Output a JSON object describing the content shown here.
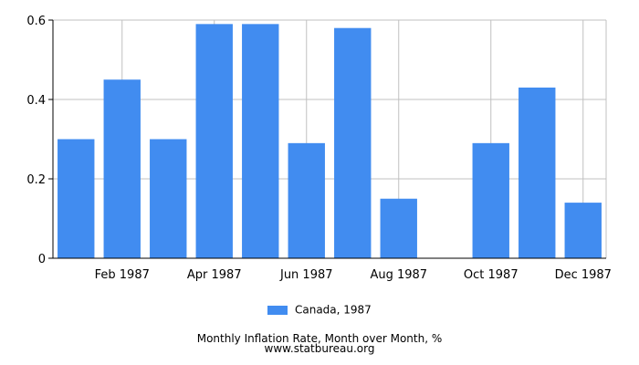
{
  "chart_data": {
    "type": "bar",
    "x": [
      "Jan 1987",
      "Feb 1987",
      "Mar 1987",
      "Apr 1987",
      "May 1987",
      "Jun 1987",
      "Jul 1987",
      "Aug 1987",
      "Sep 1987",
      "Oct 1987",
      "Nov 1987",
      "Dec 1987"
    ],
    "x_tick_labels": [
      "",
      "Feb 1987",
      "",
      "Apr 1987",
      "",
      "Jun 1987",
      "",
      "Aug 1987",
      "",
      "Oct 1987",
      "",
      "Dec 1987"
    ],
    "series": [
      {
        "name": "Canada, 1987",
        "values": [
          0.3,
          0.45,
          0.3,
          0.59,
          0.59,
          0.29,
          0.58,
          0.15,
          0.0,
          0.29,
          0.43,
          0.14
        ]
      }
    ],
    "y_ticks": [
      0,
      0.2,
      0.4,
      0.6
    ],
    "y_tick_labels": [
      "0",
      "0.2",
      "0.4",
      "0.6"
    ],
    "ylim": [
      0,
      0.6
    ],
    "grid": true,
    "legend_position": "bottom",
    "title": "Monthly Inflation Rate, Month over Month, %",
    "source": "www.statbureau.org",
    "colors": {
      "bar": "#418cf0",
      "grid": "#c0c0c0",
      "axis": "#000000"
    }
  }
}
